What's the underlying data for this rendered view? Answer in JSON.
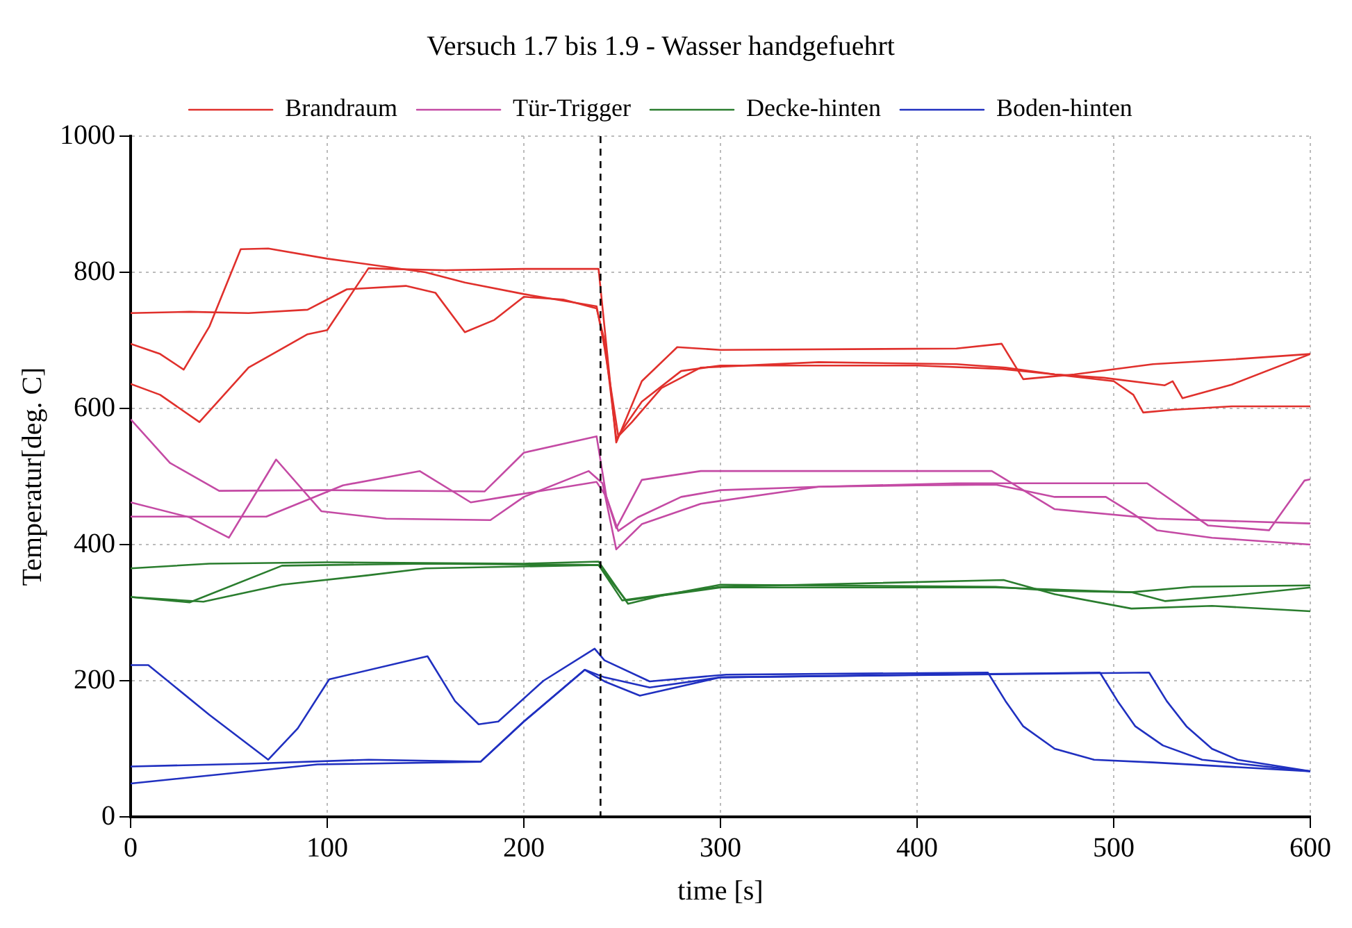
{
  "chart_data": {
    "type": "line",
    "title": "Versuch 1.7 bis 1.9 - Wasser handgefuehrt",
    "xlabel": "time [s]",
    "ylabel": "Temperatur[deg. C]",
    "xlim": [
      0,
      600
    ],
    "xticks": [
      0,
      100,
      200,
      300,
      400,
      500,
      600
    ],
    "ylim": [
      0,
      1000
    ],
    "yticks": [
      0,
      200,
      400,
      600,
      800,
      1000
    ],
    "grid": true,
    "legend": "top",
    "line_style": "solid",
    "marker": "none",
    "ref_lines": [
      {
        "axis": "x",
        "value": 239,
        "color": "#000000",
        "line_style": "dashed"
      }
    ],
    "series": [
      {
        "name": "Brandraum",
        "color": "#e0302c",
        "x": [
          0,
          30,
          60,
          90,
          110,
          140,
          155,
          170,
          185,
          200,
          220,
          237,
          241,
          247,
          255,
          270,
          290,
          350,
          420,
          445,
          470,
          500,
          510,
          515,
          530,
          560,
          600
        ],
        "values": [
          740,
          742,
          740,
          745,
          775,
          780,
          770,
          712,
          730,
          764,
          760,
          747,
          700,
          556,
          580,
          630,
          660,
          668,
          665,
          660,
          650,
          640,
          620,
          594,
          598,
          603,
          603
        ]
      },
      {
        "color": "#e0302c",
        "x": [
          0,
          15,
          27,
          40,
          56,
          70,
          100,
          150,
          170,
          200,
          237,
          241,
          248,
          260,
          280,
          300,
          400,
          443,
          470,
          495,
          526,
          530,
          535,
          560,
          600
        ],
        "values": [
          695,
          680,
          657,
          720,
          834,
          835,
          820,
          800,
          785,
          768,
          750,
          690,
          560,
          610,
          655,
          663,
          663,
          658,
          650,
          645,
          634,
          640,
          615,
          635,
          680
        ]
      },
      {
        "color": "#e0302c",
        "x": [
          0,
          15,
          35,
          60,
          90,
          100,
          121,
          130,
          160,
          200,
          238,
          241,
          247,
          260,
          278,
          300,
          420,
          443,
          454,
          480,
          520,
          560,
          600
        ],
        "values": [
          636,
          620,
          580,
          660,
          709,
          715,
          806,
          805,
          803,
          805,
          805,
          720,
          550,
          640,
          690,
          686,
          688,
          695,
          643,
          650,
          665,
          672,
          680
        ]
      },
      {
        "name": "Tür-Trigger",
        "color": "#c44aa4",
        "x": [
          0,
          20,
          45,
          100,
          180,
          200,
          237,
          242,
          248,
          258,
          280,
          300,
          350,
          400,
          440,
          470,
          496,
          510,
          522,
          550,
          600
        ],
        "values": [
          584,
          520,
          479,
          480,
          478,
          535,
          559,
          470,
          420,
          440,
          470,
          480,
          485,
          487,
          488,
          470,
          470,
          445,
          421,
          410,
          400
        ]
      },
      {
        "color": "#c44aa4",
        "x": [
          0,
          30,
          50,
          74,
          97,
          130,
          183,
          200,
          233,
          240,
          247,
          260,
          290,
          350,
          420,
          517,
          548,
          579,
          597,
          600
        ],
        "values": [
          462,
          440,
          410,
          525,
          449,
          438,
          436,
          470,
          508,
          490,
          393,
          430,
          460,
          485,
          490,
          490,
          428,
          421,
          494,
          496
        ]
      },
      {
        "color": "#c44aa4",
        "x": [
          0,
          69,
          108,
          147,
          173,
          190,
          237,
          242,
          247,
          260,
          290,
          438,
          470,
          522,
          600
        ],
        "values": [
          441,
          441,
          487,
          508,
          462,
          470,
          492,
          470,
          424,
          495,
          508,
          508,
          452,
          438,
          431
        ]
      },
      {
        "name": "Decke-hinten",
        "color": "#2a7d2e",
        "x": [
          0,
          40,
          100,
          200,
          238,
          253,
          270,
          300,
          440,
          470,
          509,
          540,
          600
        ],
        "values": [
          365,
          372,
          374,
          372,
          375,
          313,
          325,
          341,
          338,
          332,
          330,
          338,
          340
        ]
      },
      {
        "color": "#2a7d2e",
        "x": [
          0,
          30,
          77,
          150,
          238,
          250,
          300,
          444,
          470,
          509,
          550,
          600
        ],
        "values": [
          323,
          315,
          369,
          372,
          370,
          318,
          338,
          348,
          327,
          306,
          310,
          302
        ]
      },
      {
        "color": "#2a7d2e",
        "x": [
          0,
          37,
          77,
          121,
          150,
          238,
          252,
          300,
          440,
          509,
          526,
          560,
          600
        ],
        "values": [
          323,
          316,
          341,
          355,
          365,
          370,
          318,
          337,
          337,
          330,
          317,
          325,
          337
        ]
      },
      {
        "name": "Boden-hinten",
        "color": "#2030c0",
        "x": [
          0,
          9,
          40,
          70,
          85,
          101,
          151,
          165,
          177,
          187,
          210,
          236,
          241,
          264,
          303,
          436,
          445,
          454,
          470,
          490,
          520,
          600
        ],
        "values": [
          223,
          223,
          150,
          84,
          130,
          202,
          236,
          170,
          136,
          140,
          200,
          247,
          230,
          199,
          209,
          212,
          170,
          133,
          100,
          84,
          80,
          67
        ]
      },
      {
        "color": "#2030c0",
        "x": [
          0,
          60,
          121,
          178,
          200,
          231,
          241,
          259,
          300,
          493,
          502,
          511,
          525,
          545,
          600
        ],
        "values": [
          74,
          78,
          84,
          81,
          140,
          216,
          199,
          178,
          205,
          212,
          170,
          133,
          105,
          84,
          67
        ]
      },
      {
        "color": "#2030c0",
        "x": [
          0,
          95,
          178,
          200,
          231,
          241,
          264,
          300,
          518,
          527,
          537,
          550,
          563,
          600
        ],
        "values": [
          49,
          77,
          81,
          140,
          216,
          205,
          190,
          205,
          212,
          170,
          133,
          100,
          84,
          67
        ]
      }
    ]
  }
}
